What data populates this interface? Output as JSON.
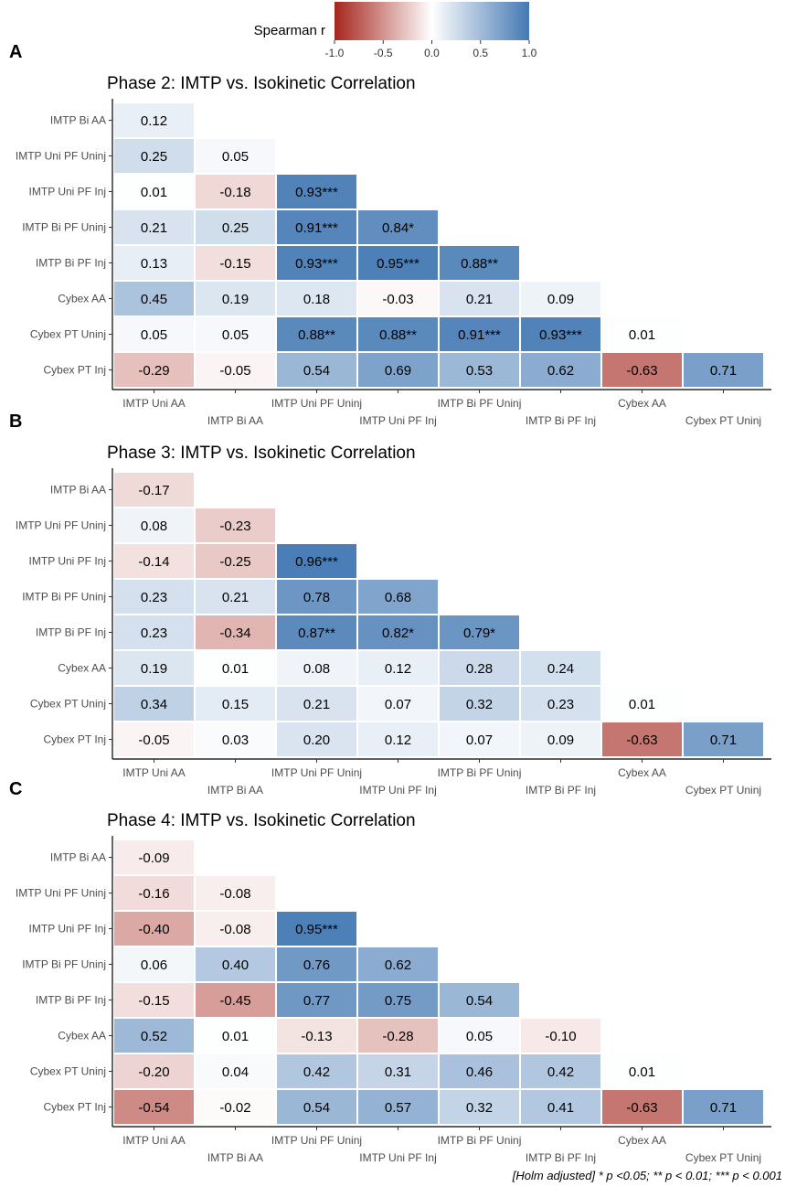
{
  "legend": {
    "title": "Spearman r",
    "ticks": [
      "-1.0",
      "-0.5",
      "0.0",
      "0.5",
      "1.0"
    ],
    "tick_values": [
      -1.0,
      -0.5,
      0.0,
      0.5,
      1.0
    ],
    "colors": {
      "low": "#a5261c",
      "mid": "#ffffff",
      "high": "#4479b3"
    }
  },
  "footnote": "[Holm adjusted] * p <0.05; ** p < 0.01; *** p < 0.001",
  "chart_data": [
    {
      "type": "heatmap",
      "panel_label": "A",
      "title": "Phase 2: IMTP vs. Isokinetic Correlation",
      "row_labels": [
        "IMTP Bi AA",
        "IMTP Uni PF Uninj",
        "IMTP Uni PF Inj",
        "IMTP Bi PF Uninj",
        "IMTP Bi PF Inj",
        "Cybex AA",
        "Cybex PT Uninj",
        "Cybex PT Inj"
      ],
      "col_labels": [
        "IMTP Uni AA",
        "IMTP Bi AA",
        "IMTP Uni PF Uninj",
        "IMTP Uni PF Inj",
        "IMTP Bi PF Uninj",
        "IMTP Bi PF Inj",
        "Cybex AA",
        "Cybex PT Uninj"
      ],
      "values": [
        [
          0.12
        ],
        [
          0.25,
          0.05
        ],
        [
          0.01,
          -0.18,
          0.93
        ],
        [
          0.21,
          0.25,
          0.91,
          0.84
        ],
        [
          0.13,
          -0.15,
          0.93,
          0.95,
          0.88
        ],
        [
          0.45,
          0.19,
          0.18,
          -0.03,
          0.21,
          0.09
        ],
        [
          0.05,
          0.05,
          0.88,
          0.88,
          0.91,
          0.93,
          0.01
        ],
        [
          -0.29,
          -0.05,
          0.54,
          0.69,
          0.53,
          0.62,
          -0.63,
          0.71
        ]
      ],
      "labels": [
        [
          "0.12"
        ],
        [
          "0.25",
          "0.05"
        ],
        [
          "0.01",
          "-0.18",
          "0.93***"
        ],
        [
          "0.21",
          "0.25",
          "0.91***",
          "0.84*"
        ],
        [
          "0.13",
          "-0.15",
          "0.93***",
          "0.95***",
          "0.88**"
        ],
        [
          "0.45",
          "0.19",
          "0.18",
          "-0.03",
          "0.21",
          "0.09"
        ],
        [
          "0.05",
          "0.05",
          "0.88**",
          "0.88**",
          "0.91***",
          "0.93***",
          "0.01"
        ],
        [
          "-0.29",
          "-0.05",
          "0.54",
          "0.69",
          "0.53",
          "0.62",
          "-0.63",
          "0.71"
        ]
      ],
      "color_range": [
        -1,
        1
      ]
    },
    {
      "type": "heatmap",
      "panel_label": "B",
      "title": "Phase 3: IMTP vs. Isokinetic Correlation",
      "row_labels": [
        "IMTP Bi AA",
        "IMTP Uni PF Uninj",
        "IMTP Uni PF Inj",
        "IMTP Bi PF Uninj",
        "IMTP Bi PF Inj",
        "Cybex AA",
        "Cybex PT Uninj",
        "Cybex PT Inj"
      ],
      "col_labels": [
        "IMTP Uni AA",
        "IMTP Bi AA",
        "IMTP Uni PF Uninj",
        "IMTP Uni PF Inj",
        "IMTP Bi PF Uninj",
        "IMTP Bi PF Inj",
        "Cybex AA",
        "Cybex PT Uninj"
      ],
      "values": [
        [
          -0.17
        ],
        [
          0.08,
          -0.23
        ],
        [
          -0.14,
          -0.25,
          0.96
        ],
        [
          0.23,
          0.21,
          0.78,
          0.68
        ],
        [
          0.23,
          -0.34,
          0.87,
          0.82,
          0.79
        ],
        [
          0.19,
          0.01,
          0.08,
          0.12,
          0.28,
          0.24
        ],
        [
          0.34,
          0.15,
          0.21,
          0.07,
          0.32,
          0.23,
          0.01
        ],
        [
          -0.05,
          0.03,
          0.2,
          0.12,
          0.07,
          0.09,
          -0.63,
          0.71
        ]
      ],
      "labels": [
        [
          "-0.17"
        ],
        [
          "0.08",
          "-0.23"
        ],
        [
          "-0.14",
          "-0.25",
          "0.96***"
        ],
        [
          "0.23",
          "0.21",
          "0.78",
          "0.68"
        ],
        [
          "0.23",
          "-0.34",
          "0.87**",
          "0.82*",
          "0.79*"
        ],
        [
          "0.19",
          "0.01",
          "0.08",
          "0.12",
          "0.28",
          "0.24"
        ],
        [
          "0.34",
          "0.15",
          "0.21",
          "0.07",
          "0.32",
          "0.23",
          "0.01"
        ],
        [
          "-0.05",
          "0.03",
          "0.20",
          "0.12",
          "0.07",
          "0.09",
          "-0.63",
          "0.71"
        ]
      ],
      "color_range": [
        -1,
        1
      ]
    },
    {
      "type": "heatmap",
      "panel_label": "C",
      "title": "Phase 4: IMTP vs. Isokinetic Correlation",
      "row_labels": [
        "IMTP Bi AA",
        "IMTP Uni PF Uninj",
        "IMTP Uni PF Inj",
        "IMTP Bi PF Uninj",
        "IMTP Bi PF Inj",
        "Cybex AA",
        "Cybex PT Uninj",
        "Cybex PT Inj"
      ],
      "col_labels": [
        "IMTP Uni AA",
        "IMTP Bi AA",
        "IMTP Uni PF Uninj",
        "IMTP Uni PF Inj",
        "IMTP Bi PF Uninj",
        "IMTP Bi PF Inj",
        "Cybex AA",
        "Cybex PT Uninj"
      ],
      "values": [
        [
          -0.09
        ],
        [
          -0.16,
          -0.08
        ],
        [
          -0.4,
          -0.08,
          0.95
        ],
        [
          0.06,
          0.4,
          0.76,
          0.62
        ],
        [
          -0.15,
          -0.45,
          0.77,
          0.75,
          0.54
        ],
        [
          0.52,
          0.01,
          -0.13,
          -0.28,
          0.05,
          -0.1
        ],
        [
          -0.2,
          0.04,
          0.42,
          0.31,
          0.46,
          0.42,
          0.01
        ],
        [
          -0.54,
          -0.02,
          0.54,
          0.57,
          0.32,
          0.41,
          -0.63,
          0.71
        ]
      ],
      "labels": [
        [
          "-0.09"
        ],
        [
          "-0.16",
          "-0.08"
        ],
        [
          "-0.40",
          "-0.08",
          "0.95***"
        ],
        [
          "0.06",
          "0.40",
          "0.76",
          "0.62"
        ],
        [
          "-0.15",
          "-0.45",
          "0.77",
          "0.75",
          "0.54"
        ],
        [
          "0.52",
          "0.01",
          "-0.13",
          "-0.28",
          "0.05",
          "-0.10"
        ],
        [
          "-0.20",
          "0.04",
          "0.42",
          "0.31",
          "0.46",
          "0.42",
          "0.01"
        ],
        [
          "-0.54",
          "-0.02",
          "0.54",
          "0.57",
          "0.32",
          "0.41",
          "-0.63",
          "0.71"
        ]
      ],
      "color_range": [
        -1,
        1
      ]
    }
  ]
}
